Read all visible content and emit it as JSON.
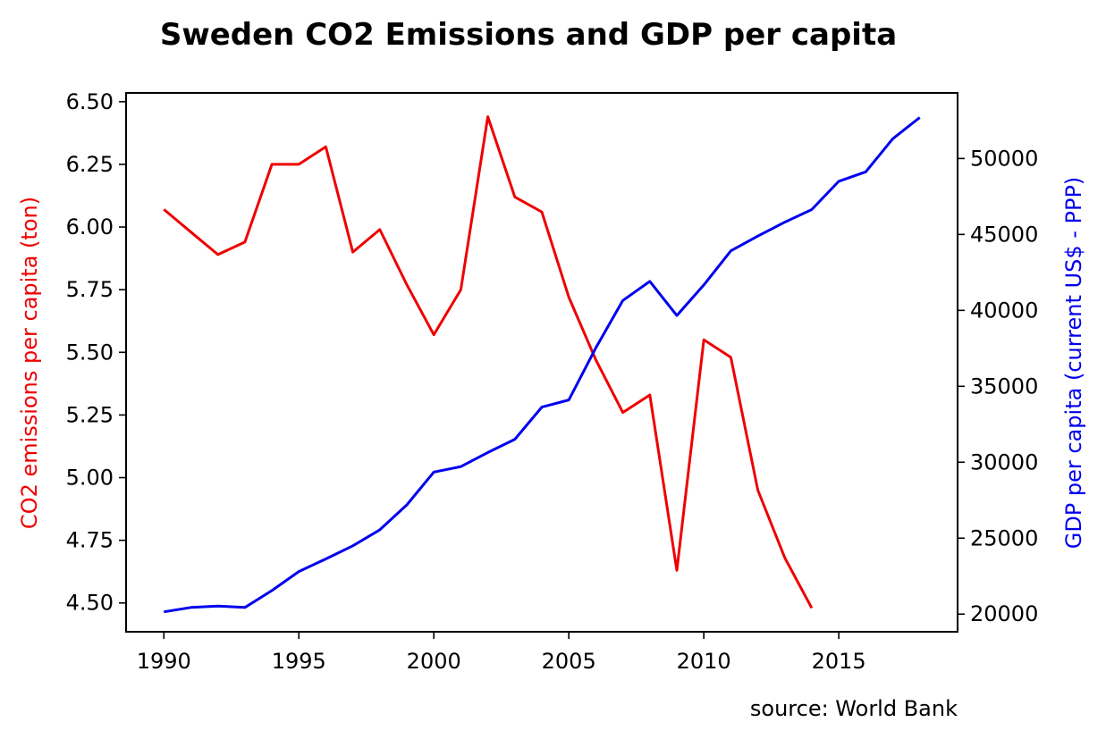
{
  "chart_data": {
    "type": "line",
    "title": "Sweden CO2 Emissions and GDP per capita",
    "xlabel": "",
    "ylabel_left": "CO2 emissions per capita (ton)",
    "ylabel_right": "GDP per capita (current US$ - PPP)",
    "source": "source: World Bank",
    "grid": false,
    "legend": "none",
    "xlim": [
      1988.6,
      2019.4
    ],
    "ylim_left": [
      4.385,
      6.535
    ],
    "ylim_right": [
      18837,
      54317
    ],
    "x_ticks": [
      1990,
      1995,
      2000,
      2005,
      2010,
      2015
    ],
    "x_tick_labels": [
      "1990",
      "1995",
      "2000",
      "2005",
      "2010",
      "2015"
    ],
    "y_left_ticks": [
      4.5,
      4.75,
      5.0,
      5.25,
      5.5,
      5.75,
      6.0,
      6.25,
      6.5
    ],
    "y_left_tick_labels": [
      "4.50",
      "4.75",
      "5.00",
      "5.25",
      "5.50",
      "5.75",
      "6.00",
      "6.25",
      "6.50"
    ],
    "y_right_ticks": [
      20000,
      25000,
      30000,
      35000,
      40000,
      45000,
      50000
    ],
    "y_right_tick_labels": [
      "20000",
      "25000",
      "30000",
      "35000",
      "40000",
      "45000",
      "50000"
    ],
    "series": [
      {
        "axis": "left",
        "color": "#ee0000",
        "x": [
          1990,
          1991,
          1992,
          1993,
          1994,
          1995,
          1996,
          1997,
          1998,
          1999,
          2000,
          2001,
          2002,
          2003,
          2004,
          2005,
          2006,
          2007,
          2008,
          2009,
          2010,
          2011,
          2012,
          2013,
          2014
        ],
        "values": [
          6.07,
          5.98,
          5.89,
          5.94,
          6.25,
          6.25,
          6.32,
          5.9,
          5.99,
          5.77,
          5.57,
          5.75,
          6.44,
          6.12,
          6.06,
          5.72,
          5.47,
          5.26,
          5.33,
          4.63,
          5.55,
          5.48,
          4.95,
          4.68,
          4.48
        ]
      },
      {
        "axis": "right",
        "color": "#0000ee",
        "x": [
          1990,
          1991,
          1992,
          1993,
          1994,
          1995,
          1996,
          1997,
          1998,
          1999,
          2000,
          2001,
          2002,
          2003,
          2004,
          2005,
          2006,
          2007,
          2008,
          2009,
          2010,
          2011,
          2012,
          2013,
          2014,
          2015,
          2016,
          2017,
          2018
        ],
        "values": [
          20150,
          20440,
          20530,
          20440,
          21550,
          22800,
          23630,
          24500,
          25550,
          27190,
          29350,
          29710,
          30640,
          31510,
          33630,
          34100,
          37530,
          40650,
          41910,
          39660,
          41670,
          43920,
          44890,
          45810,
          46640,
          48500,
          49120,
          51300,
          52700
        ]
      }
    ]
  }
}
